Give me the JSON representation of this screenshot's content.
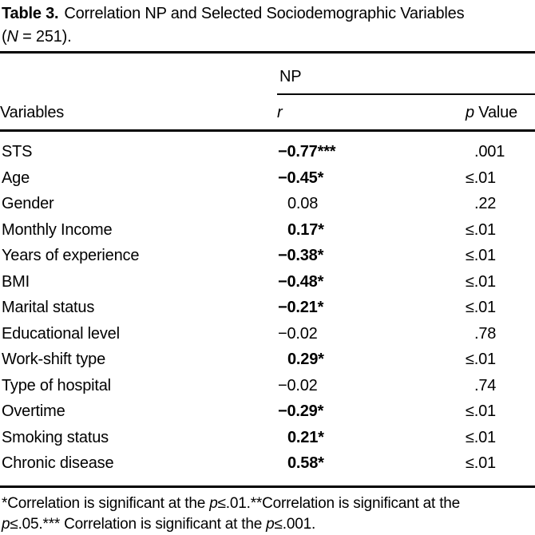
{
  "colors": {
    "background": "#ffffff",
    "text": "#000000",
    "rule": "#000000"
  },
  "title": {
    "label": "Table 3.",
    "line1": "Correlation NP and Selected Sociodemographic Variables",
    "line2_open": "(",
    "line2_n": "N",
    "line2_rest": " = 251)."
  },
  "table": {
    "spanner": "NP",
    "headers": {
      "variables": "Variables",
      "r": "r",
      "p_italic": "p",
      "p_rest": " Value"
    },
    "rows": [
      {
        "variable": "STS",
        "r": "−0.77***",
        "p": ".001"
      },
      {
        "variable": "Age",
        "r": "−0.45*",
        "p": "≤.01"
      },
      {
        "variable": "Gender",
        "r": "0.08",
        "p": ".22"
      },
      {
        "variable": "Monthly Income",
        "r": "0.17*",
        "p": "≤.01"
      },
      {
        "variable": "Years of experience",
        "r": "−0.38*",
        "p": "≤.01"
      },
      {
        "variable": "BMI",
        "r": "−0.48*",
        "p": "≤.01"
      },
      {
        "variable": "Marital status",
        "r": "−0.21*",
        "p": "≤.01"
      },
      {
        "variable": "Educational level",
        "r": "−0.02",
        "p": ".78"
      },
      {
        "variable": "Work-shift type",
        "r": "0.29*",
        "p": "≤.01"
      },
      {
        "variable": "Type of hospital",
        "r": "−0.02",
        "p": ".74"
      },
      {
        "variable": "Overtime",
        "r": "−0.29*",
        "p": "≤.01"
      },
      {
        "variable": "Smoking status",
        "r": "0.21*",
        "p": "≤.01"
      },
      {
        "variable": "Chronic disease",
        "r": "0.58*",
        "p": "≤.01"
      }
    ]
  },
  "footnote": {
    "line1_pre": "*Correlation is significant at the ",
    "line1_p": "p",
    "line1_post": "≤.01.**Correlation is significant at the",
    "line2_p1": "p",
    "line2_mid": "≤.05.*** Correlation is significant at the ",
    "line2_p2": "p",
    "line2_end": "≤.001."
  }
}
